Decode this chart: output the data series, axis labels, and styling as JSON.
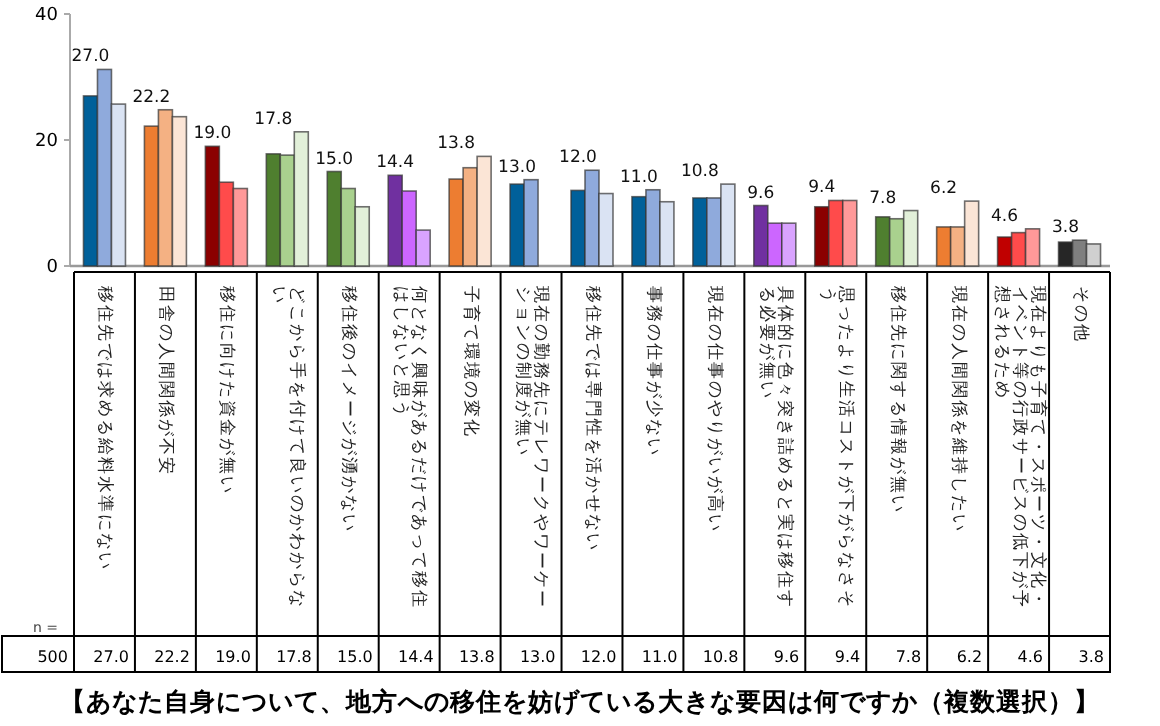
{
  "chart_data": {
    "type": "bar",
    "title": "【あなた自身について、地方への移住を妨げている大きな要因は何ですか（複数選択）】",
    "categories": [
      "移住先では求める給料水準にない",
      "田舎の人間関係が不安",
      "移住に向けた資金が無い",
      "どこから手を付けて良いのかわからない",
      "移住後のイメージが湧かない",
      "何となく興味があるだけであって移住はしないと思う",
      "子育て環境の変化",
      "現在の勤務先にテレワークやワーケーションの制度が無い",
      "移住先では専門性を活かせない",
      "事務の仕事が少ない",
      "現在の仕事のやりがいが高い",
      "具体的に色々突き詰めると実は移住する必要が無い",
      "思ったより生活コストが下がらなさそう",
      "移住先に関する情報が無い",
      "現在の人間関係を維持したい",
      "現在よりも子育て・スポーツ・文化・イベント等の行政サービスの低下が予想されるため",
      "その他"
    ],
    "ylim": [
      0,
      40
    ],
    "yticks": [
      0,
      20,
      40
    ],
    "grid": false,
    "series": [
      {
        "values": [
          27.0,
          22.2,
          19.0,
          17.8,
          15.0,
          14.4,
          13.8,
          13.0,
          12.0,
          11.0,
          10.8,
          9.6,
          9.4,
          7.8,
          6.2,
          4.6,
          3.8
        ],
        "value_labels": [
          "27.0",
          "22.2",
          "19.0",
          "17.8",
          "15.0",
          "14.4",
          "13.8",
          "13.0",
          "12.0",
          "11.0",
          "10.8",
          "9.6",
          "9.4",
          "7.8",
          "6.2",
          "4.6",
          "3.8"
        ],
        "colors": [
          "#00609a",
          "#ed7d31",
          "#8b0000",
          "#4f7f2f",
          "#4f7f2f",
          "#7030a0",
          "#ed7d31",
          "#00609a",
          "#00609a",
          "#00609a",
          "#00609a",
          "#7030a0",
          "#8b0000",
          "#4f7f2f",
          "#ed7d31",
          "#c00000",
          "#262626"
        ]
      },
      {
        "values": [
          31.2,
          24.8,
          13.3,
          17.6,
          12.3,
          11.9,
          15.6,
          13.7,
          15.2,
          12.1,
          10.8,
          6.8,
          10.4,
          7.5,
          6.2,
          5.3,
          4.1
        ],
        "colors": [
          "#8faadc",
          "#f4b183",
          "#ff4b4b",
          "#a9d18e",
          "#a9d18e",
          "#cc66ff",
          "#f4b183",
          "#8faadc",
          "#8faadc",
          "#8faadc",
          "#8faadc",
          "#cc66ff",
          "#ff4b4b",
          "#a9d18e",
          "#f4b183",
          "#ff4b4b",
          "#7f7f7f"
        ]
      },
      {
        "values": [
          25.7,
          23.7,
          12.3,
          21.3,
          9.4,
          5.7,
          17.4,
          null,
          11.5,
          10.2,
          13.0,
          6.8,
          10.4,
          8.8,
          10.3,
          5.9,
          3.5
        ],
        "colors": [
          "#dae3f3",
          "#fbe5d6",
          "#ff9999",
          "#e2f0d9",
          "#e2f0d9",
          "#d9a3ff",
          "#fbe5d6",
          null,
          "#dae3f3",
          "#dae3f3",
          "#dae3f3",
          "#d9a3ff",
          "#ff9999",
          "#e2f0d9",
          "#fbe5d6",
          "#ff9999",
          "#d0d0d0"
        ]
      }
    ],
    "annotations": [
      "n =",
      "500"
    ]
  }
}
